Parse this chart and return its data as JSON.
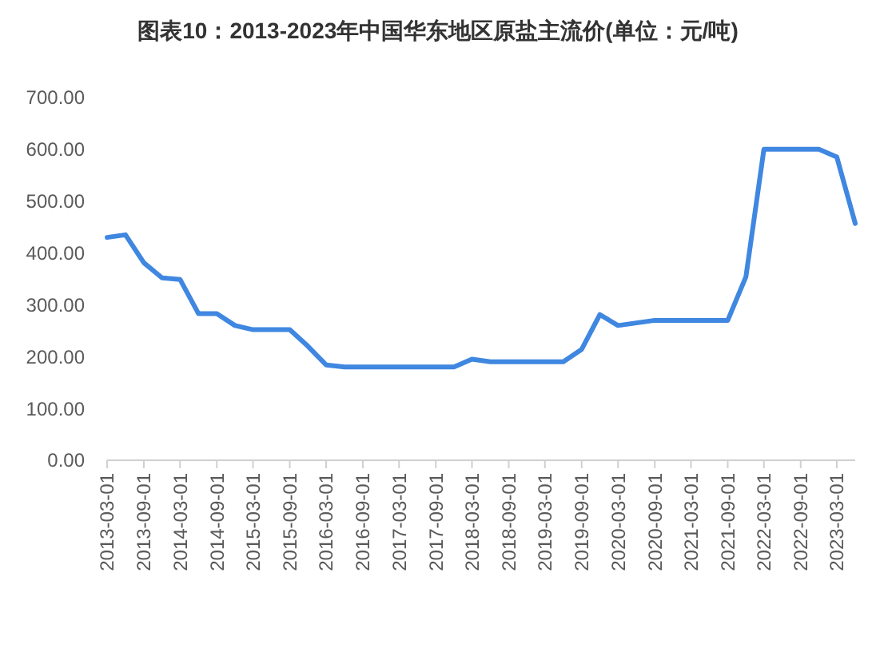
{
  "chart_data": {
    "type": "line",
    "title": "图表10：2013-2023年中国华东地区原盐主流价(单位：元/吨)",
    "x": [
      "2013-03",
      "2013-06",
      "2013-09",
      "2013-12",
      "2014-03",
      "2014-06",
      "2014-09",
      "2014-12",
      "2015-03",
      "2015-06",
      "2015-09",
      "2015-12",
      "2016-03",
      "2016-06",
      "2016-09",
      "2016-12",
      "2017-03",
      "2017-06",
      "2017-09",
      "2017-12",
      "2018-03",
      "2018-06",
      "2018-09",
      "2018-12",
      "2019-03",
      "2019-06",
      "2019-09",
      "2019-12",
      "2020-03",
      "2020-06",
      "2020-09",
      "2020-12",
      "2021-03",
      "2021-06",
      "2021-09",
      "2021-12",
      "2022-03",
      "2022-06",
      "2022-09",
      "2022-12",
      "2023-03",
      "2023-06"
    ],
    "series": [
      {
        "color": "#3f87e0",
        "values": [
          430,
          435,
          381,
          352,
          349,
          283,
          283,
          260,
          252,
          252,
          252,
          220,
          184,
          180,
          180,
          180,
          180,
          180,
          180,
          180,
          195,
          190,
          190,
          190,
          190,
          190,
          214,
          281,
          260,
          265,
          270,
          270,
          270,
          270,
          270,
          354,
          600,
          600,
          600,
          600,
          585,
          457
        ]
      }
    ],
    "xlim": [
      "2013-03",
      "2023-06"
    ],
    "xticks": [
      "2013-03-01",
      "2013-09-01",
      "2014-03-01",
      "2014-09-01",
      "2015-03-01",
      "2015-09-01",
      "2016-03-01",
      "2016-09-01",
      "2017-03-01",
      "2017-09-01",
      "2018-03-01",
      "2018-09-01",
      "2019-03-01",
      "2019-09-01",
      "2020-03-01",
      "2020-09-01",
      "2021-03-01",
      "2021-09-01",
      "2022-03-01",
      "2022-09-01",
      "2023-03-01"
    ],
    "ylim": [
      0,
      700
    ],
    "yticks": [
      {
        "value": 0,
        "label": "0.00"
      },
      {
        "value": 100,
        "label": "100.00"
      },
      {
        "value": 200,
        "label": "200.00"
      },
      {
        "value": 300,
        "label": "300.00"
      },
      {
        "value": 400,
        "label": "400.00"
      },
      {
        "value": 500,
        "label": "500.00"
      },
      {
        "value": 600,
        "label": "600.00"
      },
      {
        "value": 700,
        "label": "700.00"
      }
    ],
    "marker": "none",
    "line_style": "solid"
  }
}
